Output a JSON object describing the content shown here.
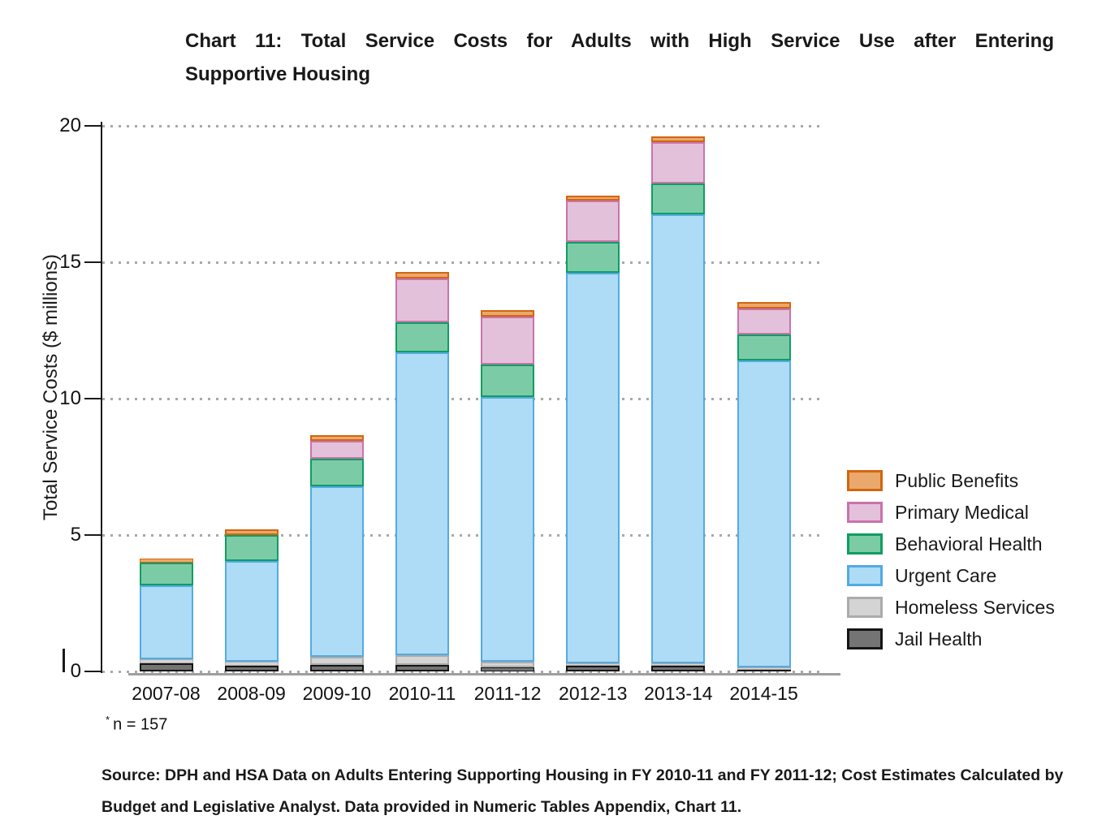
{
  "title": {
    "line1": "Chart 11: Total Service Costs for Adults with High Service Use after Entering",
    "line2": "Supportive Housing"
  },
  "footnote": {
    "asterisk": "*",
    "text": "n = 157"
  },
  "source": "Source: DPH and HSA Data on Adults Entering Supporting Housing in FY 2010-11 and FY 2011-12; Cost Estimates Calculated by Budget and Legislative Analyst. Data provided in Numeric Tables Appendix, Chart 11.",
  "chart_data": {
    "type": "bar",
    "stacked": true,
    "title": "Chart 11: Total Service Costs for Adults with High Service Use after Entering Supportive Housing",
    "xlabel": "",
    "ylabel": "Total Service Costs ($ millions)",
    "ylim": [
      0,
      20
    ],
    "yticks": [
      0,
      5,
      10,
      15,
      20
    ],
    "grid": "dotted-horizontal",
    "legend_position": "right",
    "categories": [
      "2007-08",
      "2008-09",
      "2009-10",
      "2010-11",
      "2011-12",
      "2012-13",
      "2013-14",
      "2014-15"
    ],
    "series": [
      {
        "name": "Jail Health",
        "fill": "#747474",
        "border": "#151515",
        "values": [
          0.3,
          0.2,
          0.25,
          0.25,
          0.15,
          0.2,
          0.2,
          0.05
        ]
      },
      {
        "name": "Homeless Services",
        "fill": "#D4D4D4",
        "border": "#ABABAB",
        "values": [
          0.15,
          0.15,
          0.3,
          0.35,
          0.2,
          0.1,
          0.1,
          0.1
        ]
      },
      {
        "name": "Urgent Care",
        "fill": "#AEDBF6",
        "border": "#53ABE2",
        "values": [
          2.7,
          3.7,
          6.25,
          11.1,
          9.7,
          14.3,
          16.45,
          11.25
        ]
      },
      {
        "name": "Behavioral Health",
        "fill": "#7CCBA7",
        "border": "#0F9D62",
        "values": [
          0.85,
          0.95,
          1.0,
          1.1,
          1.2,
          1.15,
          1.15,
          0.95
        ]
      },
      {
        "name": "Primary Medical",
        "fill": "#E4C1DB",
        "border": "#C873AC",
        "values": [
          0.0,
          0.0,
          0.65,
          1.6,
          1.75,
          1.5,
          1.5,
          0.95
        ]
      },
      {
        "name": "Public Benefits",
        "fill": "#EBA86C",
        "border": "#D2660F",
        "values": [
          0.15,
          0.2,
          0.2,
          0.25,
          0.25,
          0.2,
          0.2,
          0.25
        ]
      }
    ],
    "totals": [
      4.15,
      5.2,
      8.65,
      14.65,
      13.25,
      17.45,
      19.6,
      13.55
    ],
    "legend_order": [
      "Public Benefits",
      "Primary Medical",
      "Behavioral Health",
      "Urgent Care",
      "Homeless Services",
      "Jail Health"
    ]
  }
}
